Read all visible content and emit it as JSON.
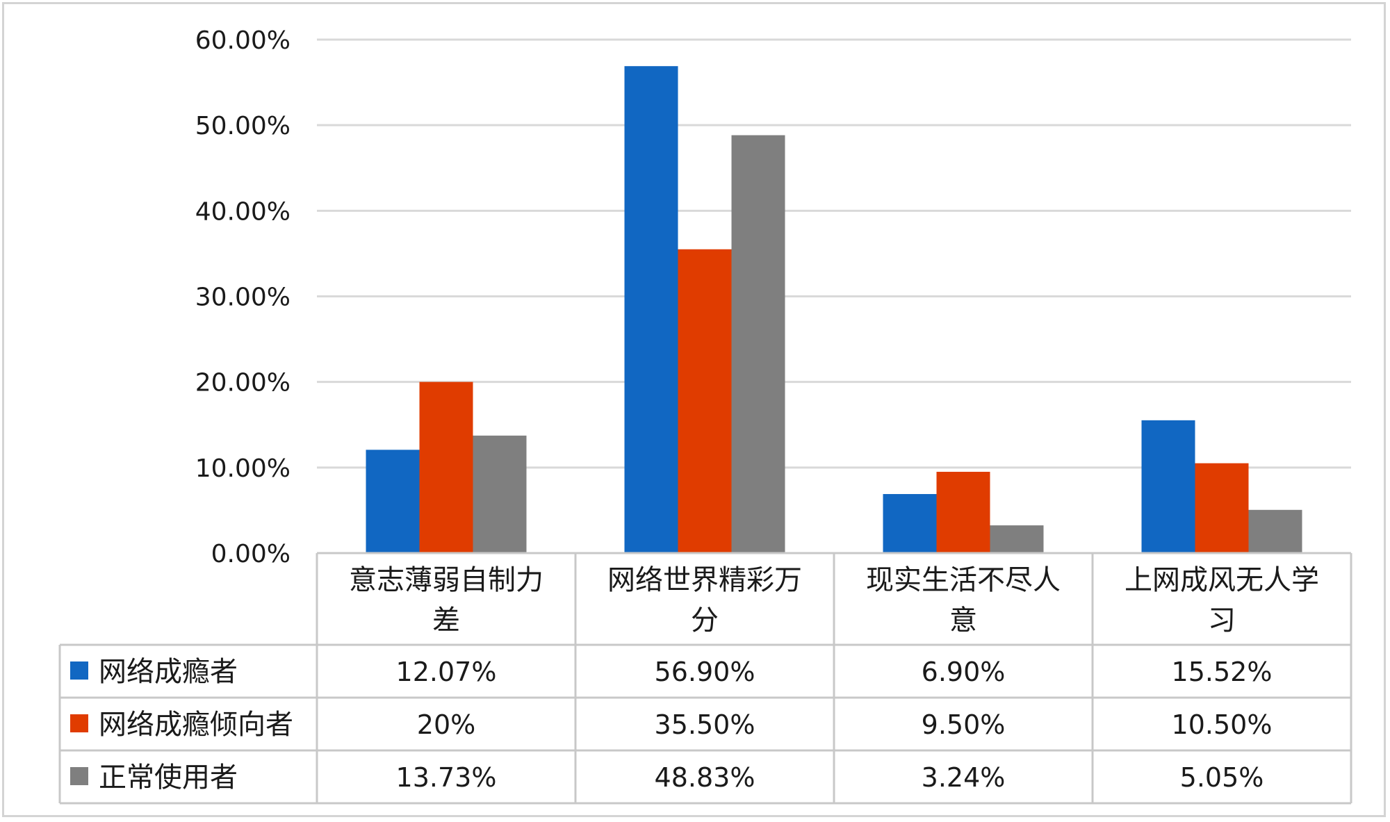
{
  "chart_data": {
    "type": "bar",
    "categories": [
      [
        "意志薄弱自制力",
        "差"
      ],
      [
        "网络世界精彩万",
        "分"
      ],
      [
        "现实生活不尽人",
        "意"
      ],
      [
        "上网成风无人学",
        "习"
      ]
    ],
    "series": [
      {
        "name": "网络成瘾者",
        "color": "#1167c2",
        "values": [
          12.07,
          56.9,
          6.9,
          15.52
        ],
        "labels": [
          "12.07%",
          "56.90%",
          "6.90%",
          "15.52%"
        ]
      },
      {
        "name": "网络成瘾倾向者",
        "color": "#e03c00",
        "values": [
          20,
          35.5,
          9.5,
          10.5
        ],
        "labels": [
          "20%",
          "35.50%",
          "9.50%",
          "10.50%"
        ]
      },
      {
        "name": "正常使用者",
        "color": "#7f7f7f",
        "values": [
          13.73,
          48.83,
          3.24,
          5.05
        ],
        "labels": [
          "13.73%",
          "48.83%",
          "3.24%",
          "5.05%"
        ]
      }
    ],
    "ylim": [
      0,
      60
    ],
    "yticks": [
      0,
      10,
      20,
      30,
      40,
      50,
      60
    ],
    "ytick_labels": [
      "0.00%",
      "10.00%",
      "20.00%",
      "30.00%",
      "40.00%",
      "50.00%",
      "60.00%"
    ],
    "grid": true,
    "legend": "data-table",
    "colors": {
      "gridline": "#d9d9d9",
      "table_border": "#c8c8c8",
      "text": "#1a1a1a"
    }
  }
}
